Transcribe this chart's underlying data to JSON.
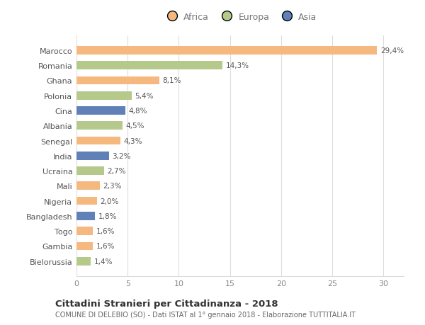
{
  "countries": [
    "Marocco",
    "Romania",
    "Ghana",
    "Polonia",
    "Cina",
    "Albania",
    "Senegal",
    "India",
    "Ucraina",
    "Mali",
    "Nigeria",
    "Bangladesh",
    "Togo",
    "Gambia",
    "Bielorussia"
  ],
  "values": [
    29.4,
    14.3,
    8.1,
    5.4,
    4.8,
    4.5,
    4.3,
    3.2,
    2.7,
    2.3,
    2.0,
    1.8,
    1.6,
    1.6,
    1.4
  ],
  "labels": [
    "29,4%",
    "14,3%",
    "8,1%",
    "5,4%",
    "4,8%",
    "4,5%",
    "4,3%",
    "3,2%",
    "2,7%",
    "2,3%",
    "2,0%",
    "1,8%",
    "1,6%",
    "1,6%",
    "1,4%"
  ],
  "continents": [
    "Africa",
    "Europa",
    "Africa",
    "Europa",
    "Asia",
    "Europa",
    "Africa",
    "Asia",
    "Europa",
    "Africa",
    "Africa",
    "Asia",
    "Africa",
    "Africa",
    "Europa"
  ],
  "colors": {
    "Africa": "#F5B97F",
    "Europa": "#B5C98A",
    "Asia": "#6080B8"
  },
  "xlim": [
    0,
    32
  ],
  "xticks": [
    0,
    5,
    10,
    15,
    20,
    25,
    30
  ],
  "title": "Cittadini Stranieri per Cittadinanza - 2018",
  "subtitle": "COMUNE DI DELEBIO (SO) - Dati ISTAT al 1° gennaio 2018 - Elaborazione TUTTITALIA.IT",
  "background_color": "#ffffff",
  "grid_color": "#dddddd",
  "bar_height": 0.55,
  "bar_alpha": 1.0,
  "label_fontsize": 7.5,
  "ytick_fontsize": 8.0,
  "xtick_fontsize": 8.0,
  "legend_fontsize": 9.0
}
